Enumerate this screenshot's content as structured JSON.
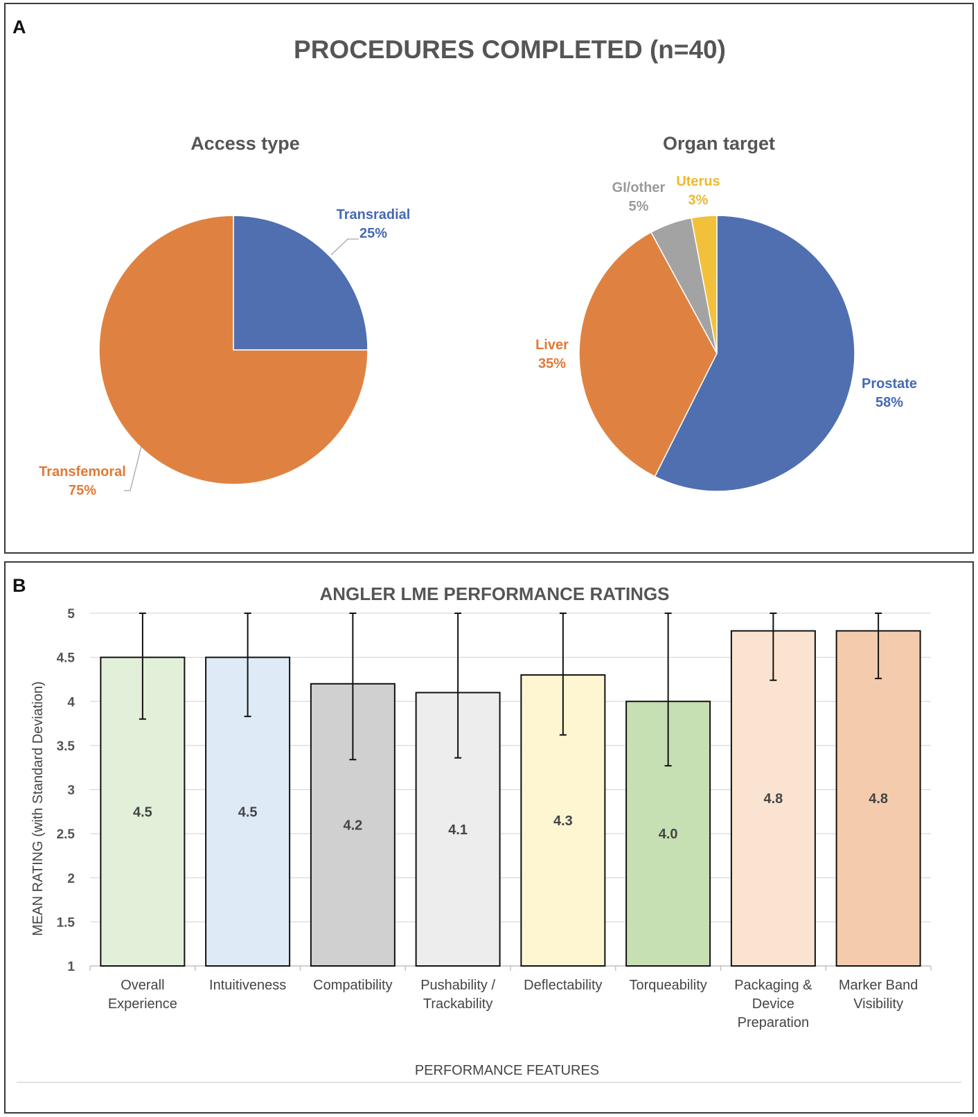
{
  "panel_a": {
    "letter": "A",
    "title": "PROCEDURES COMPLETED (n=40)"
  },
  "panel_b": {
    "letter": "B"
  },
  "colors": {
    "blue": "#4F6FB0",
    "orange": "#DF8241",
    "gray": "#A3A3A3",
    "yellow": "#F2C13C",
    "label_blue": "#4569B5",
    "label_orange": "#E07A35",
    "label_gray": "#9A9A9A",
    "label_yellow": "#EDB82E"
  },
  "chart_data": [
    {
      "type": "pie",
      "title": "Access type",
      "slices": [
        {
          "label": "Transradial",
          "value": 25,
          "display": "25%",
          "color": "#4F6FB0",
          "label_color": "#4569B5"
        },
        {
          "label": "Transfemoral",
          "value": 75,
          "display": "75%",
          "color": "#DF8241",
          "label_color": "#E07A35"
        }
      ]
    },
    {
      "type": "pie",
      "title": "Organ target",
      "slices": [
        {
          "label": "Prostate",
          "value": 58,
          "display": "58%",
          "color": "#4F6FB0",
          "label_color": "#4569B5"
        },
        {
          "label": "Liver",
          "value": 35,
          "display": "35%",
          "color": "#DF8241",
          "label_color": "#E07A35"
        },
        {
          "label": "GI/other",
          "value": 5,
          "display": "5%",
          "color": "#A3A3A3",
          "label_color": "#9A9A9A"
        },
        {
          "label": "Uterus",
          "value": 3,
          "display": "3%",
          "color": "#F2C13C",
          "label_color": "#EDB82E"
        }
      ]
    },
    {
      "type": "bar",
      "title": "ANGLER LME PERFORMANCE RATINGS",
      "xlabel": "PERFORMANCE FEATURES",
      "ylabel": "MEAN RATING (with Standard Deviation)",
      "ylim": [
        1,
        5
      ],
      "yticks": [
        "1",
        "1.5",
        "2",
        "2.5",
        "3",
        "3.5",
        "4",
        "4.5",
        "5"
      ],
      "grid": true,
      "categories": [
        [
          "Overall",
          "Experience"
        ],
        [
          "Intuitiveness"
        ],
        [
          "Compatibility"
        ],
        [
          "Pushability /",
          "Trackability"
        ],
        [
          "Deflectability"
        ],
        [
          "Torqueability"
        ],
        [
          "Packaging &",
          "Device",
          "Preparation"
        ],
        [
          "Marker Band",
          "Visibility"
        ]
      ],
      "values": [
        4.5,
        4.5,
        4.2,
        4.1,
        4.3,
        4.0,
        4.8,
        4.8
      ],
      "value_labels": [
        "4.5",
        "4.5",
        "4.2",
        "4.1",
        "4.3",
        "4.0",
        "4.8",
        "4.8"
      ],
      "error_low": [
        3.8,
        3.83,
        3.34,
        3.36,
        3.62,
        3.27,
        4.24,
        4.26
      ],
      "error_high": [
        5,
        5,
        5,
        5,
        5,
        5,
        5,
        5
      ],
      "bar_colors": [
        "#E2EFD9",
        "#DEEBF6",
        "#D0D0D0",
        "#EDEDED",
        "#FEF5D1",
        "#C6E0B4",
        "#FAE3D0",
        "#F4CCAD"
      ]
    }
  ]
}
